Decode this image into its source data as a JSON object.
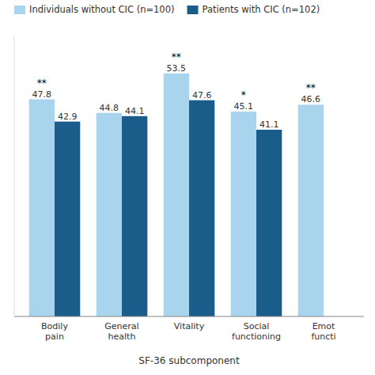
{
  "chart_data": {
    "type": "bar",
    "x_label": "SF-36 subcomponent",
    "categories": [
      "Bodily\npain",
      "General\nhealth",
      "Vitality",
      "Social\nfunctioning",
      "Emot\nfuncti"
    ],
    "series": [
      {
        "name": "Individuals without CIC (n=100)",
        "color": "#a8d4ed",
        "values": [
          47.8,
          44.8,
          53.5,
          45.1,
          46.6
        ],
        "significance": [
          "**",
          null,
          "**",
          "*",
          "**"
        ]
      },
      {
        "name": "Patients with CIC (n=102)",
        "color": "#1a5c8a",
        "values": [
          42.9,
          44.1,
          47.6,
          41.1,
          null
        ]
      }
    ],
    "ylim": [
      0,
      62
    ],
    "tick_labels": "x",
    "data_labels": true,
    "legend": "upper left",
    "grid": false
  }
}
